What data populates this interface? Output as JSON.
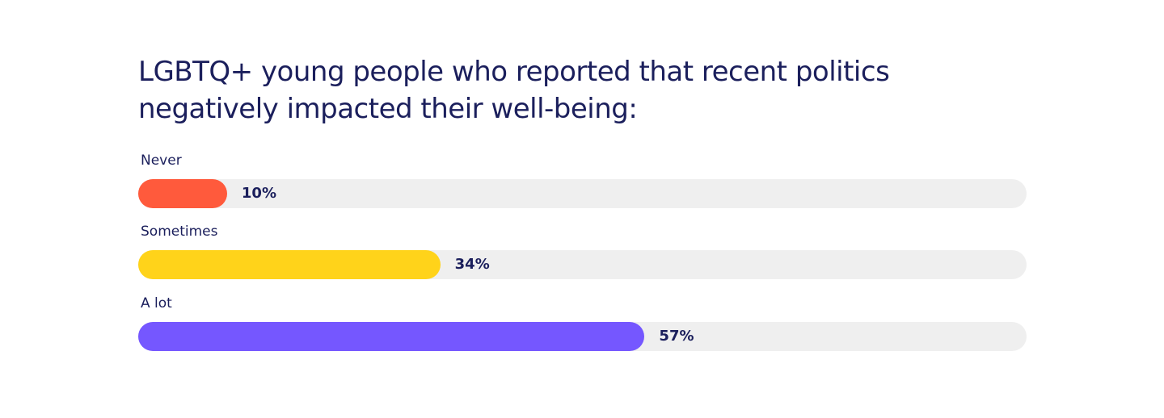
{
  "chart_data": {
    "type": "bar",
    "orientation": "horizontal",
    "title": "LGBTQ+ young people who reported that recent politics negatively impacted their well-being:",
    "categories": [
      "Never",
      "Sometimes",
      "A lot"
    ],
    "values": [
      10,
      34,
      57
    ],
    "value_labels": [
      "10%",
      "34%",
      "57%"
    ],
    "unit": "%",
    "xlim": [
      0,
      100
    ],
    "colors": [
      "#ff5a3c",
      "#ffd31a",
      "#7557ff"
    ],
    "track_color": "#efefef",
    "grid": false
  }
}
